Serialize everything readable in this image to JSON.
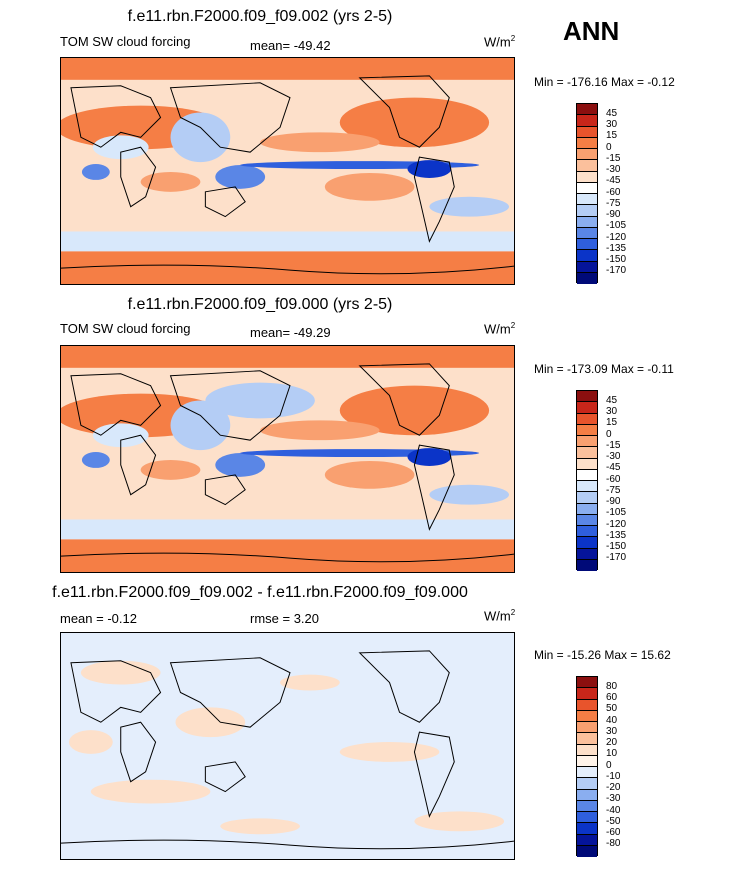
{
  "season": "ANN",
  "panels": [
    {
      "title": "f.e11.rbn.F2000.f09_f09.002 (yrs 2-5)",
      "left_label": "TOM SW cloud forcing",
      "center_label": "mean= -49.42",
      "units": "W/m",
      "units_sup": "2",
      "minmax": "Min = -176.16 Max =  -0.12",
      "colorbar_labels": [
        "45",
        "30",
        "15",
        "0",
        "-15",
        "-30",
        "-45",
        "-60",
        "-75",
        "-90",
        "-105",
        "-120",
        "-135",
        "-150",
        "-170"
      ]
    },
    {
      "title": "f.e11.rbn.F2000.f09_f09.000 (yrs 2-5)",
      "left_label": "TOM SW cloud forcing",
      "center_label": "mean= -49.29",
      "units": "W/m",
      "units_sup": "2",
      "minmax": "Min = -173.09 Max =  -0.11",
      "colorbar_labels": [
        "45",
        "30",
        "15",
        "0",
        "-15",
        "-30",
        "-45",
        "-60",
        "-75",
        "-90",
        "-105",
        "-120",
        "-135",
        "-150",
        "-170"
      ]
    },
    {
      "title": "f.e11.rbn.F2000.f09_f09.002 - f.e11.rbn.F2000.f09_f09.000",
      "left_label": "mean =  -0.12",
      "center_label": "rmse =   3.20",
      "units": "W/m",
      "units_sup": "2",
      "minmax": "Min = -15.26 Max =  15.62",
      "colorbar_labels": [
        "80",
        "60",
        "50",
        "40",
        "30",
        "20",
        "10",
        "0",
        "-10",
        "-20",
        "-30",
        "-40",
        "-50",
        "-60",
        "-80"
      ]
    }
  ],
  "colors": {
    "field_palette": [
      "#8b0f0f",
      "#c8261a",
      "#e8542c",
      "#f57e45",
      "#f9a070",
      "#fbc09c",
      "#fde0ca",
      "#ffffff",
      "#d8e8fb",
      "#b4cdf5",
      "#8aaef0",
      "#5a86e6",
      "#2f5fdd",
      "#0b34c8",
      "#05149a",
      "#000a78"
    ],
    "diff_palette": [
      "#8b0f0f",
      "#c8261a",
      "#e8542c",
      "#f57e45",
      "#f9a070",
      "#fbc09c",
      "#fde0ca",
      "#ffffff",
      "#d8e8fb",
      "#b4cdf5",
      "#8aaef0",
      "#5a86e6",
      "#2f5fdd",
      "#0b34c8",
      "#05149a",
      "#000a78"
    ]
  }
}
